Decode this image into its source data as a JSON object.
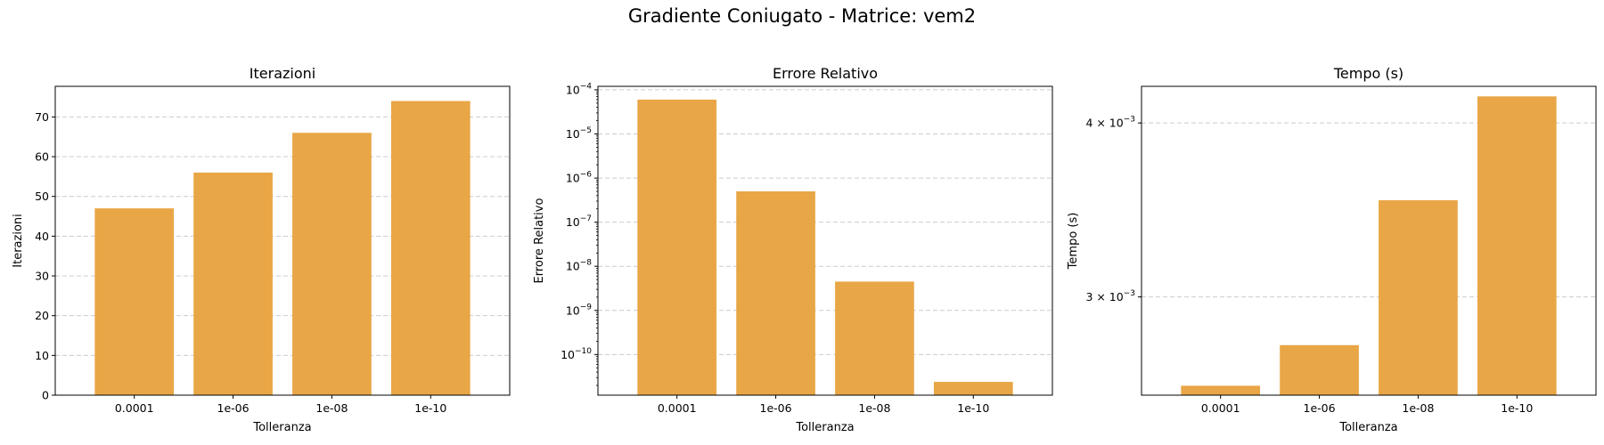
{
  "figure": {
    "title": "Gradiente Coniugato - Matrice: vem2",
    "bar_color": "#E8A646",
    "grid_color": "#cccccc"
  },
  "chart_data": [
    {
      "type": "bar",
      "title": "Iterazioni",
      "xlabel": "Tolleranza",
      "ylabel": "Iterazioni",
      "categories": [
        "0.0001",
        "1e-06",
        "1e-08",
        "1e-10"
      ],
      "values": [
        47,
        56,
        66,
        74
      ],
      "yscale": "linear",
      "ylim": [
        0,
        77.7
      ],
      "yticks": [
        0,
        10,
        20,
        30,
        40,
        50,
        60,
        70
      ],
      "ytick_labels": [
        "0",
        "10",
        "20",
        "30",
        "40",
        "50",
        "60",
        "70"
      ],
      "grid": "y-dashed",
      "legend": "none"
    },
    {
      "type": "bar",
      "title": "Errore Relativo",
      "xlabel": "Tolleranza",
      "ylabel": "Errore Relativo",
      "categories": [
        "0.0001",
        "1e-06",
        "1e-08",
        "1e-10"
      ],
      "values": [
        6e-05,
        5e-07,
        4.5e-09,
        2.4e-11
      ],
      "yscale": "log",
      "ylim": [
        1.2e-11,
        0.00012
      ],
      "yticks": [
        1e-10,
        1e-09,
        1e-08,
        1e-07,
        1e-06,
        1e-05,
        0.0001
      ],
      "ytick_labels": [
        {
          "base": "10",
          "exp": "−10"
        },
        {
          "base": "10",
          "exp": "−9"
        },
        {
          "base": "10",
          "exp": "−8"
        },
        {
          "base": "10",
          "exp": "−7"
        },
        {
          "base": "10",
          "exp": "−6"
        },
        {
          "base": "10",
          "exp": "−5"
        },
        {
          "base": "10",
          "exp": "−4"
        }
      ],
      "grid": "y-dashed",
      "legend": "none"
    },
    {
      "type": "bar",
      "title": "Tempo (s)",
      "xlabel": "Tolleranza",
      "ylabel": "Tempo (s)",
      "categories": [
        "0.0001",
        "1e-06",
        "1e-08",
        "1e-10"
      ],
      "values": [
        0.00259,
        0.00277,
        0.00352,
        0.00418
      ],
      "yscale": "log",
      "ylim": [
        0.00255,
        0.00425
      ],
      "yticks": [
        0.003,
        0.004
      ],
      "ytick_labels": [
        {
          "base": "3 × 10",
          "exp": "−3"
        },
        {
          "base": "4 × 10",
          "exp": "−3"
        }
      ],
      "grid": "y-dashed",
      "legend": "none"
    }
  ]
}
